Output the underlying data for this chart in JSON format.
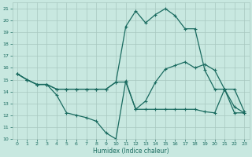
{
  "xlabel": "Humidex (Indice chaleur)",
  "bg_color": "#c8e8e0",
  "grid_color": "#a8c8c0",
  "line_color": "#1a6b60",
  "xlim": [
    -0.5,
    23.5
  ],
  "ylim": [
    10,
    21.5
  ],
  "yticks": [
    10,
    11,
    12,
    13,
    14,
    15,
    16,
    17,
    18,
    19,
    20,
    21
  ],
  "xticks": [
    0,
    1,
    2,
    3,
    4,
    5,
    6,
    7,
    8,
    9,
    10,
    11,
    12,
    13,
    14,
    15,
    16,
    17,
    18,
    19,
    20,
    21,
    22,
    23
  ],
  "line1_x": [
    0,
    1,
    2,
    3,
    4,
    5,
    6,
    7,
    8,
    9,
    10,
    11,
    12,
    13,
    14,
    15,
    16,
    17,
    18,
    19,
    20,
    21,
    22,
    23
  ],
  "line1_y": [
    15.5,
    15.0,
    14.6,
    14.6,
    13.7,
    12.2,
    12.0,
    11.8,
    11.5,
    10.5,
    10.0,
    14.9,
    12.5,
    13.2,
    14.8,
    15.9,
    16.2,
    16.5,
    16.0,
    16.3,
    15.8,
    14.2,
    14.2,
    12.3
  ],
  "line2_x": [
    0,
    1,
    2,
    3,
    4,
    5,
    6,
    7,
    8,
    9,
    10,
    11,
    12,
    13,
    14,
    15,
    16,
    17,
    18,
    19,
    20,
    21,
    22,
    23
  ],
  "line2_y": [
    15.5,
    15.0,
    14.6,
    14.6,
    14.2,
    14.2,
    14.2,
    14.2,
    14.2,
    14.2,
    14.8,
    19.5,
    20.8,
    19.8,
    20.5,
    21.0,
    20.4,
    19.3,
    19.3,
    15.8,
    14.2,
    14.2,
    12.7,
    12.2
  ],
  "line3_x": [
    0,
    1,
    2,
    3,
    4,
    5,
    6,
    7,
    8,
    9,
    10,
    11,
    12,
    13,
    14,
    15,
    16,
    17,
    18,
    19,
    20,
    21,
    22,
    23
  ],
  "line3_y": [
    15.5,
    15.0,
    14.6,
    14.6,
    14.2,
    14.2,
    14.2,
    14.2,
    14.2,
    14.2,
    14.8,
    14.8,
    12.5,
    12.5,
    12.5,
    12.5,
    12.5,
    12.5,
    12.5,
    12.3,
    12.2,
    14.2,
    12.2,
    12.2
  ]
}
